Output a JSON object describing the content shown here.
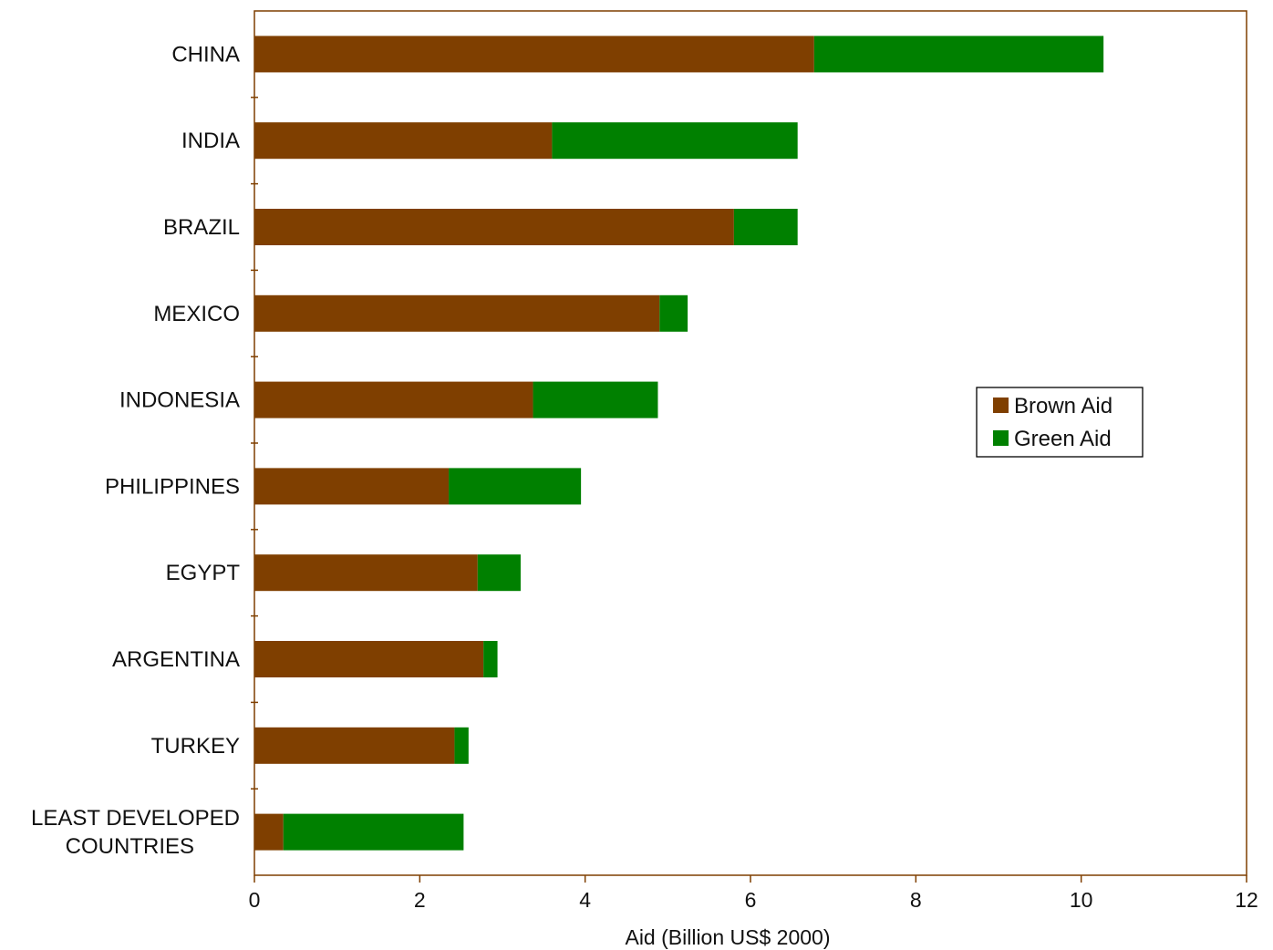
{
  "chart_data": {
    "type": "bar",
    "orientation": "horizontal",
    "stacked": true,
    "categories": [
      "CHINA",
      "INDIA",
      "BRAZIL",
      "MEXICO",
      "INDONESIA",
      "PHILIPPINES",
      "EGYPT",
      "ARGENTINA",
      "TURKEY",
      "LEAST DEVELOPED COUNTRIES"
    ],
    "category_lines": [
      [
        "CHINA"
      ],
      [
        "INDIA"
      ],
      [
        "BRAZIL"
      ],
      [
        "MEXICO"
      ],
      [
        "INDONESIA"
      ],
      [
        "PHILIPPINES"
      ],
      [
        "EGYPT"
      ],
      [
        "ARGENTINA"
      ],
      [
        "TURKEY"
      ],
      [
        "LEAST DEVELOPED",
        "COUNTRIES"
      ]
    ],
    "series": [
      {
        "name": "Brown Aid",
        "color": "#7f3f00",
        "values": [
          6.77,
          3.6,
          5.8,
          4.9,
          3.37,
          2.35,
          2.7,
          2.77,
          2.42,
          0.35
        ]
      },
      {
        "name": "Green Aid",
        "color": "#008000",
        "values": [
          3.5,
          2.97,
          0.77,
          0.34,
          1.51,
          1.6,
          0.52,
          0.17,
          0.17,
          2.18
        ]
      }
    ],
    "xlabel": "Aid (Billion US$ 2000)",
    "ylabel": "",
    "xlim": [
      0,
      12
    ],
    "xticks": [
      0,
      2,
      4,
      6,
      8,
      10,
      12
    ],
    "grid": false,
    "legend_position": "right"
  }
}
